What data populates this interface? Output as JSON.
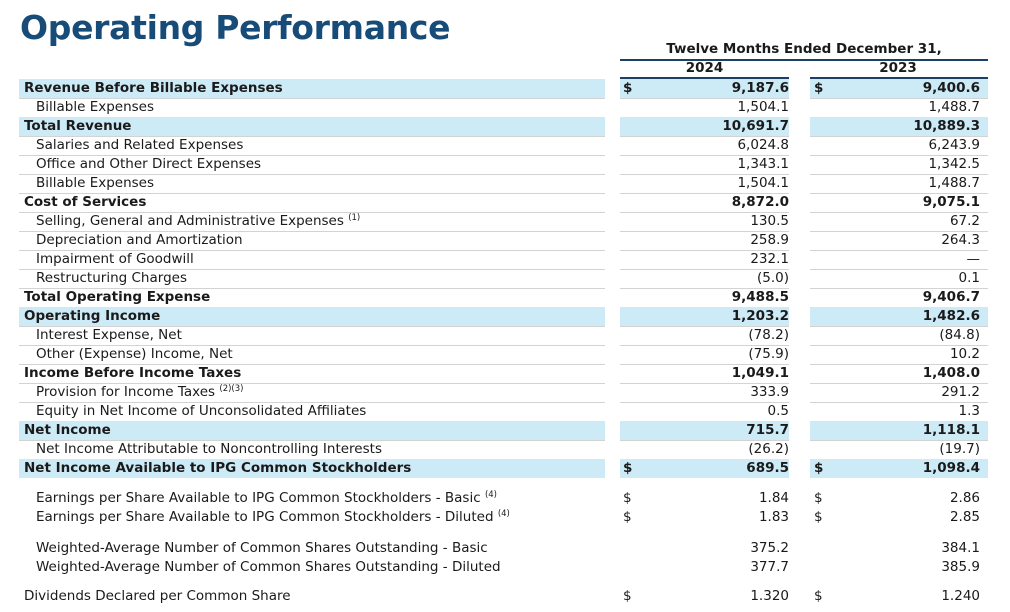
{
  "title": "Operating Performance",
  "period_header": "Twelve Months Ended December 31,",
  "years": [
    "2024",
    "2023"
  ],
  "rows": [
    {
      "label": "Revenue Before Billable Expenses",
      "cur1": "$",
      "v1": "9,187.6",
      "cur2": "$",
      "v2": "9,400.6",
      "bold": true,
      "shaded": true
    },
    {
      "label": "Billable Expenses",
      "v1": "1,504.1",
      "v2": "1,488.7",
      "indent": true
    },
    {
      "label": "Total Revenue",
      "v1": "10,691.7",
      "v2": "10,889.3",
      "bold": true,
      "shaded": true
    },
    {
      "label": "Salaries and Related Expenses",
      "v1": "6,024.8",
      "v2": "6,243.9",
      "indent": true
    },
    {
      "label": "Office and Other Direct Expenses",
      "v1": "1,343.1",
      "v2": "1,342.5",
      "indent": true
    },
    {
      "label": "Billable Expenses",
      "v1": "1,504.1",
      "v2": "1,488.7",
      "indent": true
    },
    {
      "label": "Cost of Services",
      "v1": "8,872.0",
      "v2": "9,075.1",
      "bold": true
    },
    {
      "label": "Selling, General and Administrative Expenses",
      "note": "(1)",
      "v1": "130.5",
      "v2": "67.2",
      "indent": true
    },
    {
      "label": "Depreciation and Amortization",
      "v1": "258.9",
      "v2": "264.3",
      "indent": true
    },
    {
      "label": "Impairment of Goodwill",
      "v1": "232.1",
      "v2": "—",
      "indent": true
    },
    {
      "label": "Restructuring Charges",
      "v1": "(5.0)",
      "v2": "0.1",
      "indent": true
    },
    {
      "label": "Total Operating Expense",
      "v1": "9,488.5",
      "v2": "9,406.7",
      "bold": true
    },
    {
      "label": "Operating Income",
      "v1": "1,203.2",
      "v2": "1,482.6",
      "bold": true,
      "shaded": true
    },
    {
      "label": "Interest Expense, Net",
      "v1": "(78.2)",
      "v2": "(84.8)",
      "indent": true
    },
    {
      "label": "Other (Expense) Income, Net",
      "v1": "(75.9)",
      "v2": "10.2",
      "indent": true
    },
    {
      "label": "Income Before Income Taxes",
      "v1": "1,049.1",
      "v2": "1,408.0",
      "bold": true
    },
    {
      "label": "Provision for Income Taxes",
      "note": "(2)(3)",
      "v1": "333.9",
      "v2": "291.2",
      "indent": true
    },
    {
      "label": "Equity in Net Income of Unconsolidated Affiliates",
      "v1": "0.5",
      "v2": "1.3",
      "indent": true
    },
    {
      "label": "Net Income",
      "v1": "715.7",
      "v2": "1,118.1",
      "bold": true,
      "shaded": true
    },
    {
      "label": "Net Income Attributable to Noncontrolling Interests",
      "v1": "(26.2)",
      "v2": "(19.7)",
      "indent": true
    },
    {
      "label": "Net Income Available to IPG Common Stockholders",
      "cur1": "$",
      "v1": "689.5",
      "cur2": "$",
      "v2": "1,098.4",
      "bold": true,
      "shaded": true
    },
    {
      "label": "Earnings per Share Available to IPG Common Stockholders - Basic",
      "note": "(4)",
      "cur1": "$",
      "v1": "1.84",
      "cur2": "$",
      "v2": "2.86",
      "indent": true
    },
    {
      "label": "Earnings per Share Available to IPG Common Stockholders - Diluted",
      "note": "(4)",
      "cur1": "$",
      "v1": "1.83",
      "cur2": "$",
      "v2": "2.85",
      "indent": true
    },
    {
      "label": "Weighted-Average Number of Common Shares Outstanding - Basic",
      "v1": "375.2",
      "v2": "384.1",
      "indent": true
    },
    {
      "label": "Weighted-Average Number of Common Shares Outstanding - Diluted",
      "v1": "377.7",
      "v2": "385.9",
      "indent": true
    },
    {
      "label": "Dividends Declared per Common Share",
      "cur1": "$",
      "v1": "1.320",
      "cur2": "$",
      "v2": "1.240"
    }
  ]
}
